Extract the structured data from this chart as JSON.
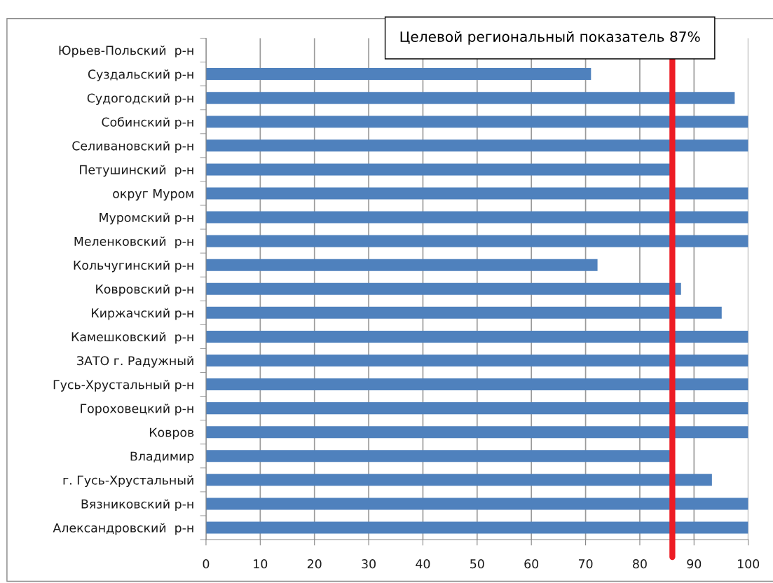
{
  "chart_data": {
    "type": "bar",
    "orientation": "horizontal",
    "categories": [
      "Юрьев-Польский  р-н",
      "Суздальский р-н",
      "Судогодский р-н",
      "Собинский р-н",
      "Селивановский р-н",
      "Петушинский  р-н",
      "округ Муром",
      "Муромский р-н",
      "Меленковский  р-н",
      "Кольчугинский р-н",
      "Ковровский р-н",
      "Киржачский р-н",
      "Камешковский  р-н",
      "ЗАТО г. Радужный",
      "Гусь-Хрустальный р-н",
      "Гороховецкий р-н",
      "Ковров",
      "Владимир",
      "г. Гусь-Хрустальный",
      "Вязниковский р-н",
      "Александровский  р-н"
    ],
    "values": [
      null,
      71,
      97.5,
      100,
      100,
      85.7,
      100,
      100,
      100,
      72.2,
      87.6,
      95.1,
      100,
      100,
      100,
      100,
      100,
      85.7,
      93.3,
      100,
      100
    ],
    "color": "#4f81bd",
    "xlim": [
      0,
      100
    ],
    "xticks": [
      0,
      10,
      20,
      30,
      40,
      50,
      60,
      70,
      80,
      90,
      100
    ],
    "grid": "x",
    "ref_lines": [
      {
        "axis": "x",
        "value": 86,
        "label": "Целевой региональный показатель 87%",
        "color": "#ed1c24",
        "line_style": "solid"
      }
    ]
  }
}
